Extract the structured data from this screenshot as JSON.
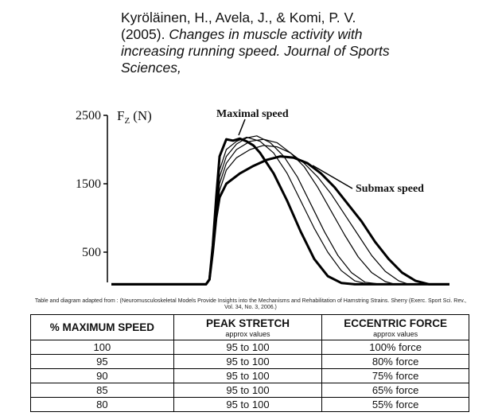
{
  "citation": {
    "authors": "Kyröläinen, H., Avela, J., & Komi, P. V. (2005). ",
    "title": "Changes in muscle activity with increasing running speed. Journal of Sports Sciences,"
  },
  "chart_data": {
    "type": "line",
    "ylabel_parts": [
      "F",
      "Z",
      "(N)"
    ],
    "xlim": [
      0,
      100
    ],
    "ylim": [
      0,
      2500
    ],
    "yticks": [
      500,
      1500,
      2500
    ],
    "series": [
      {
        "name": "Maximal speed",
        "color": "#000000",
        "bold": true,
        "x": [
          0,
          28,
          29,
          30,
          31,
          32,
          34,
          36,
          38,
          40,
          42,
          44,
          48,
          52,
          56,
          60,
          64,
          68,
          72,
          100
        ],
        "values": [
          30,
          30,
          100,
          600,
          1300,
          1900,
          2150,
          2130,
          2160,
          2120,
          2060,
          1950,
          1650,
          1250,
          800,
          400,
          150,
          50,
          30,
          30
        ]
      },
      {
        "color": "#000000",
        "x": [
          0,
          28,
          29,
          30,
          31,
          32,
          34,
          37,
          40,
          44,
          48,
          52,
          56,
          60,
          64,
          68,
          72,
          76,
          100
        ],
        "values": [
          30,
          30,
          100,
          550,
          1150,
          1700,
          2000,
          2120,
          2180,
          2120,
          1950,
          1650,
          1250,
          850,
          500,
          230,
          80,
          30,
          30
        ]
      },
      {
        "color": "#000000",
        "x": [
          0,
          28,
          29,
          30,
          31,
          32,
          34,
          37,
          40,
          43,
          47,
          51,
          55,
          59,
          63,
          67,
          71,
          75,
          80,
          100
        ],
        "values": [
          30,
          30,
          100,
          520,
          1100,
          1600,
          1900,
          2080,
          2170,
          2200,
          2100,
          1900,
          1600,
          1200,
          800,
          450,
          200,
          60,
          30,
          30
        ]
      },
      {
        "color": "#000000",
        "x": [
          0,
          28,
          29,
          30,
          31,
          32,
          34,
          37,
          41,
          45,
          49,
          53,
          57,
          61,
          65,
          69,
          73,
          77,
          81,
          84,
          100
        ],
        "values": [
          30,
          30,
          100,
          500,
          1050,
          1500,
          1800,
          2000,
          2120,
          2150,
          2100,
          1950,
          1750,
          1450,
          1100,
          750,
          430,
          200,
          70,
          30,
          30
        ]
      },
      {
        "color": "#000000",
        "x": [
          0,
          28,
          29,
          30,
          31,
          32,
          34,
          37,
          41,
          45,
          49,
          53,
          57,
          61,
          65,
          69,
          73,
          77,
          81,
          85,
          88,
          100
        ],
        "values": [
          30,
          30,
          100,
          480,
          1000,
          1400,
          1700,
          1880,
          2000,
          2060,
          2040,
          1950,
          1800,
          1600,
          1350,
          1050,
          750,
          450,
          220,
          80,
          30,
          30
        ]
      },
      {
        "name": "Submax speed",
        "color": "#000000",
        "bold": true,
        "x": [
          0,
          28,
          29,
          30,
          31,
          32,
          34,
          38,
          42,
          46,
          50,
          54,
          58,
          62,
          66,
          70,
          74,
          78,
          82,
          86,
          90,
          94,
          100
        ],
        "values": [
          30,
          30,
          100,
          500,
          1000,
          1300,
          1500,
          1650,
          1760,
          1850,
          1900,
          1880,
          1800,
          1650,
          1450,
          1200,
          950,
          650,
          400,
          200,
          80,
          30,
          30
        ]
      }
    ]
  },
  "caption": "Table and diagram adapted from : (Neuromusculoskeletal Models Provide Insights into the Mechanisms and Rehabilitation of Hamstring Strains. Sherry (Exerc. Sport Sci. Rev., Vol. 34, No. 3, 2006.)",
  "table": {
    "headers": [
      {
        "label": "% MAXIMUM SPEED"
      },
      {
        "label": "PEAK STRETCH",
        "note": "approx values"
      },
      {
        "label": "ECCENTRIC FORCE",
        "note": "approx values"
      }
    ],
    "rows": [
      [
        "100",
        "95 to 100",
        "100% force"
      ],
      [
        "95",
        "95 to 100",
        "80% force"
      ],
      [
        "90",
        "95 to 100",
        "75% force"
      ],
      [
        "85",
        "95 to 100",
        "65% force"
      ],
      [
        "80",
        "95 to 100",
        "55% force"
      ]
    ]
  }
}
